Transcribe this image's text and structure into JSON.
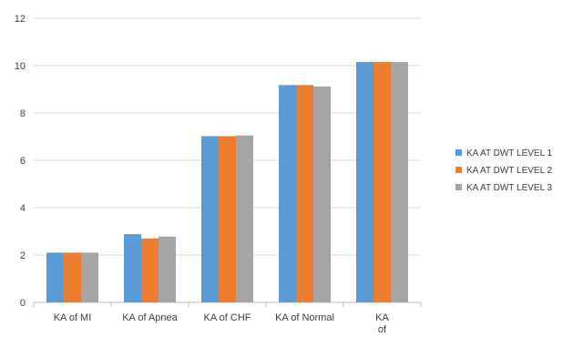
{
  "chart_data": {
    "type": "bar",
    "title": "",
    "xlabel": "",
    "ylabel": "",
    "ylim": [
      0,
      12
    ],
    "yticks": [
      0,
      2,
      4,
      6,
      8,
      10,
      12
    ],
    "grid": true,
    "legend_position": "right",
    "categories": [
      "KA of MI",
      "KA  of Apnea",
      "KA of CHF",
      "KA of Normal",
      "KA of Arrythmia"
    ],
    "series": [
      {
        "name": "KA AT DWT LEVEL 1",
        "color": "#5B9BD5",
        "values": [
          2.1,
          2.88,
          7.02,
          9.18,
          10.15
        ]
      },
      {
        "name": "KA AT DWT LEVEL 2",
        "color": "#ED7D31",
        "values": [
          2.1,
          2.7,
          7.02,
          9.18,
          10.15
        ]
      },
      {
        "name": "KA AT DWT LEVEL 3",
        "color": "#A5A5A5",
        "values": [
          2.1,
          2.78,
          7.05,
          9.12,
          10.15
        ]
      }
    ]
  }
}
